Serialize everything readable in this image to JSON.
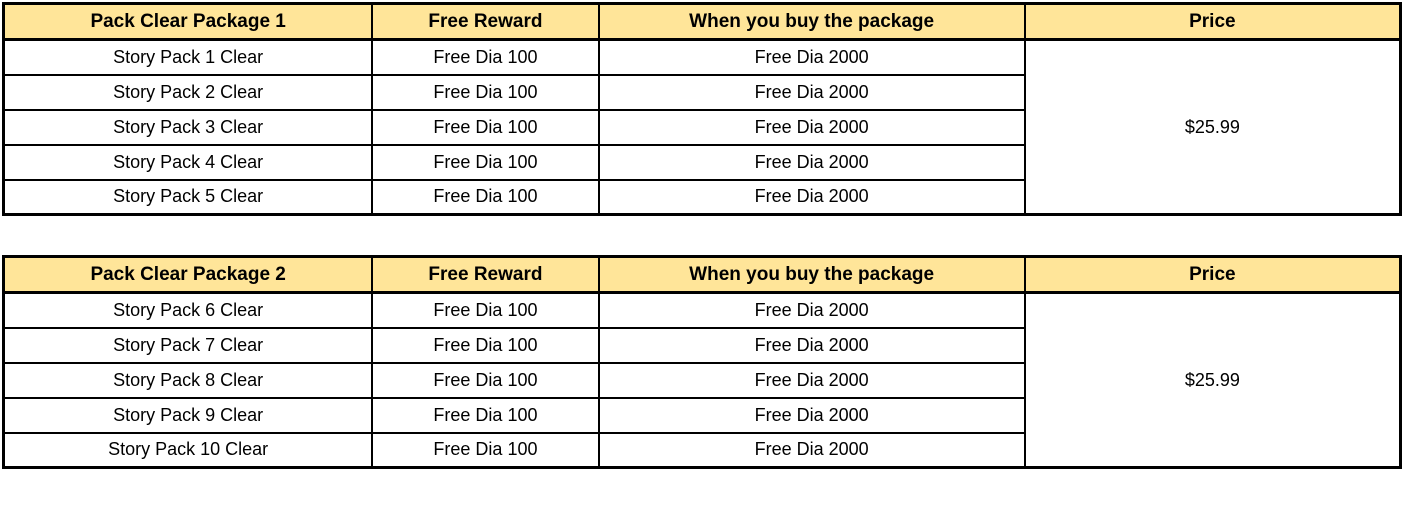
{
  "colors": {
    "header_bg": "#FFE599",
    "border": "#000000",
    "text": "#000000"
  },
  "tables": [
    {
      "headers": [
        "Pack Clear Package 1",
        "Free Reward",
        "When you buy the package",
        "Price"
      ],
      "rows": [
        [
          "Story Pack 1 Clear",
          "Free Dia 100",
          "Free Dia 2000"
        ],
        [
          "Story Pack 2 Clear",
          "Free Dia 100",
          "Free Dia 2000"
        ],
        [
          "Story Pack 3 Clear",
          "Free Dia 100",
          "Free Dia 2000"
        ],
        [
          "Story Pack 4 Clear",
          "Free Dia 100",
          "Free Dia 2000"
        ],
        [
          "Story Pack 5 Clear",
          "Free Dia 100",
          "Free Dia 2000"
        ]
      ],
      "price": "$25.99"
    },
    {
      "headers": [
        "Pack Clear Package 2",
        "Free Reward",
        "When you buy the package",
        "Price"
      ],
      "rows": [
        [
          "Story Pack 6 Clear",
          "Free Dia 100",
          "Free Dia 2000"
        ],
        [
          "Story Pack 7 Clear",
          "Free Dia 100",
          "Free Dia 2000"
        ],
        [
          "Story Pack 8 Clear",
          "Free Dia 100",
          "Free Dia 2000"
        ],
        [
          "Story Pack 9 Clear",
          "Free Dia 100",
          "Free Dia 2000"
        ],
        [
          "Story Pack 10 Clear",
          "Free Dia 100",
          "Free Dia 2000"
        ]
      ],
      "price": "$25.99"
    }
  ]
}
